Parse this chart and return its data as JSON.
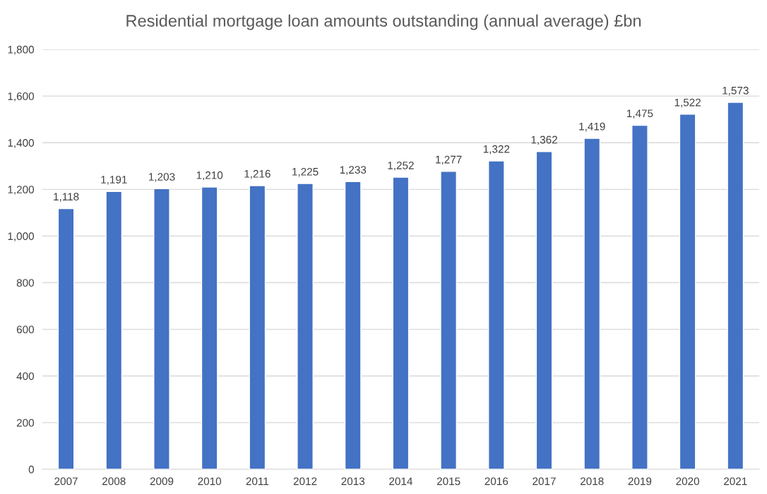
{
  "chart_data": {
    "type": "bar",
    "title": "Residential mortgage loan amounts outstanding (annual average) £bn",
    "categories": [
      "2007",
      "2008",
      "2009",
      "2010",
      "2011",
      "2012",
      "2013",
      "2014",
      "2015",
      "2016",
      "2017",
      "2018",
      "2019",
      "2020",
      "2021"
    ],
    "values": [
      1118,
      1191,
      1203,
      1210,
      1216,
      1225,
      1233,
      1252,
      1277,
      1322,
      1362,
      1419,
      1475,
      1522,
      1573
    ],
    "value_labels": [
      "1,118",
      "1,191",
      "1,203",
      "1,210",
      "1,216",
      "1,225",
      "1,233",
      "1,252",
      "1,277",
      "1,322",
      "1,362",
      "1,419",
      "1,475",
      "1,522",
      "1,573"
    ],
    "color": "#4472c4",
    "ylim": [
      0,
      1800
    ],
    "yticks": [
      0,
      200,
      400,
      600,
      800,
      {
        "value": 1000,
        "label": "1,000"
      },
      {
        "value": 1200,
        "label": "1,200"
      },
      {
        "value": 1400,
        "label": "1,400"
      },
      {
        "value": 1600,
        "label": "1,600"
      },
      {
        "value": 1800,
        "label": "1,800"
      }
    ],
    "grid": "y",
    "legend": false
  }
}
